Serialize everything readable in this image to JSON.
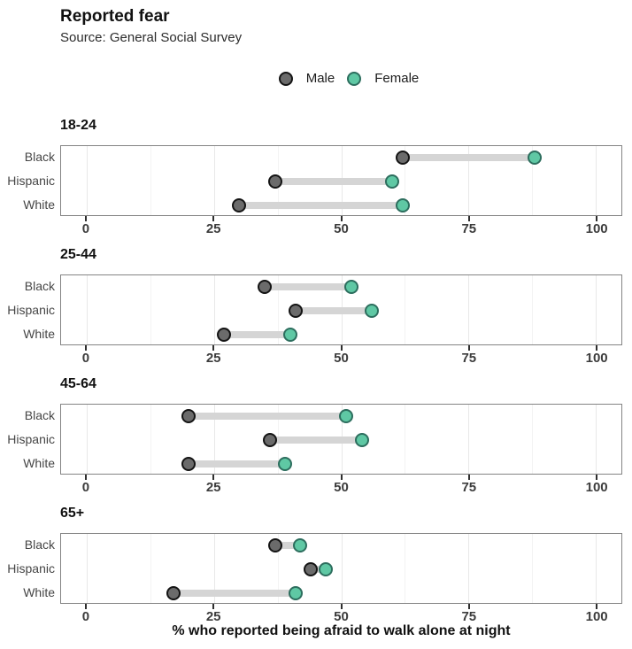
{
  "header": {
    "title": "Reported fear",
    "subtitle": "Source: General Social Survey"
  },
  "legend": {
    "items": [
      {
        "label": "Male",
        "color_key": "male"
      },
      {
        "label": "Female",
        "color_key": "female"
      }
    ]
  },
  "axis": {
    "xlabel": "% who reported being afraid to walk alone at night",
    "tick_values": [
      0,
      25,
      50,
      75,
      100
    ],
    "tick_labels": [
      "0",
      "25",
      "50",
      "75",
      "100"
    ]
  },
  "chart_data": {
    "type": "scatter",
    "subtype": "dumbbell",
    "title": "Reported fear",
    "subtitle": "Source: General Social Survey",
    "xlabel": "% who reported being afraid to walk alone at night",
    "xlim": [
      -5,
      105
    ],
    "major_gridlines": [
      0,
      25,
      50,
      75,
      100
    ],
    "minor_gridlines": [
      12.5,
      37.5,
      62.5,
      87.5
    ],
    "legend_position": "top-center",
    "series_names": [
      "Male",
      "Female"
    ],
    "facets": [
      {
        "age": "18-24",
        "rows": [
          {
            "group": "Black",
            "male": 62,
            "female": 88
          },
          {
            "group": "Hispanic",
            "male": 37,
            "female": 60
          },
          {
            "group": "White",
            "male": 30,
            "female": 62
          }
        ]
      },
      {
        "age": "25-44",
        "rows": [
          {
            "group": "Black",
            "male": 35,
            "female": 52
          },
          {
            "group": "Hispanic",
            "male": 41,
            "female": 56
          },
          {
            "group": "White",
            "male": 27,
            "female": 40
          }
        ]
      },
      {
        "age": "45-64",
        "rows": [
          {
            "group": "Black",
            "male": 20,
            "female": 51
          },
          {
            "group": "Hispanic",
            "male": 36,
            "female": 54
          },
          {
            "group": "White",
            "male": 20,
            "female": 39
          }
        ]
      },
      {
        "age": "65+",
        "rows": [
          {
            "group": "Black",
            "male": 37,
            "female": 42
          },
          {
            "group": "Hispanic",
            "male": 44,
            "female": 47
          },
          {
            "group": "White",
            "male": 17,
            "female": 41
          }
        ]
      }
    ],
    "colors": {
      "male_fill": "#6b6b6b",
      "male_stroke": "#141414",
      "female_fill": "#5fc8a4",
      "female_stroke": "#2d6e5e",
      "connector": "#d5d5d5",
      "major_grid": "#e8e8e8",
      "minor_grid": "#f3f3f3",
      "panel_border": "#848484"
    }
  }
}
